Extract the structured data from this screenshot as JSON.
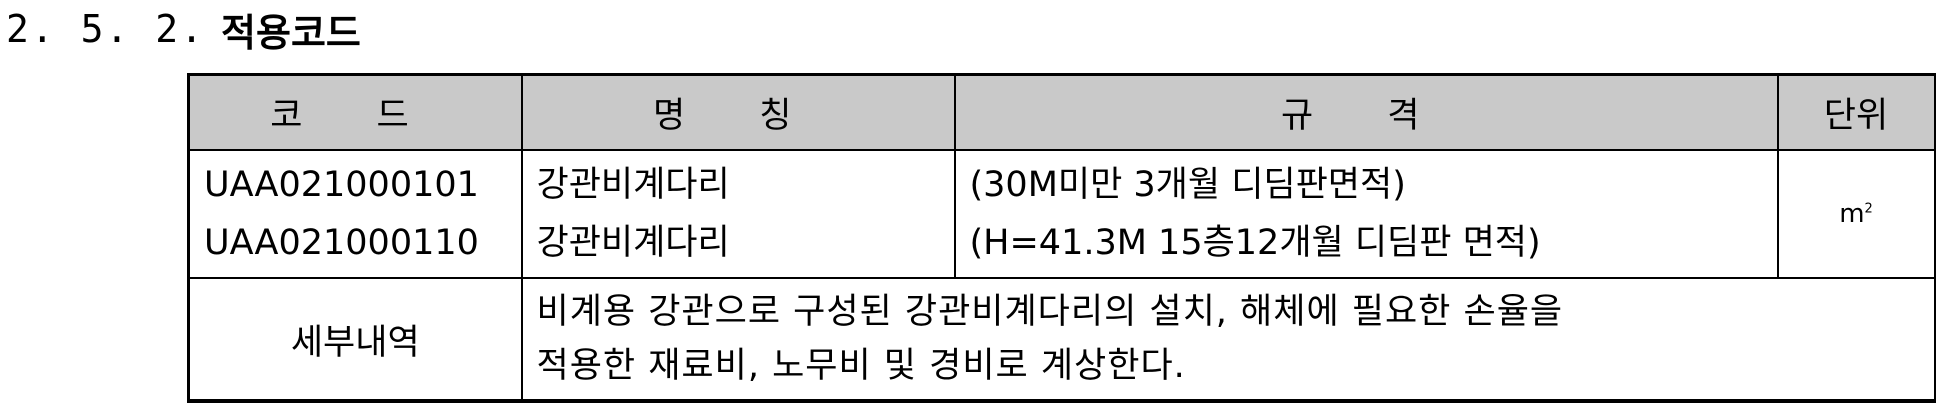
{
  "section": {
    "number": "2. 5. 2.",
    "title": "적용코드"
  },
  "table": {
    "headers": {
      "code": "코 드",
      "name": "명 칭",
      "spec": "규 격",
      "unit": "단위"
    },
    "rows": {
      "codes": [
        "UAA021000101",
        "UAA021000110"
      ],
      "names": [
        "강관비계다리",
        "강관비계다리"
      ],
      "specs": [
        "(30M미만 3개월 디딤판면적)",
        "(H=41.3M 15층12개월 디딤판 면적)"
      ],
      "unit_base": "m",
      "unit_exp": "2"
    },
    "detail": {
      "label": "세부내역",
      "lines": [
        "비계용 강관으로 구성된 강관비계다리의 설치, 해체에 필요한 손율을",
        "적용한 재료비, 노무비 및 경비로 계상한다."
      ]
    }
  }
}
